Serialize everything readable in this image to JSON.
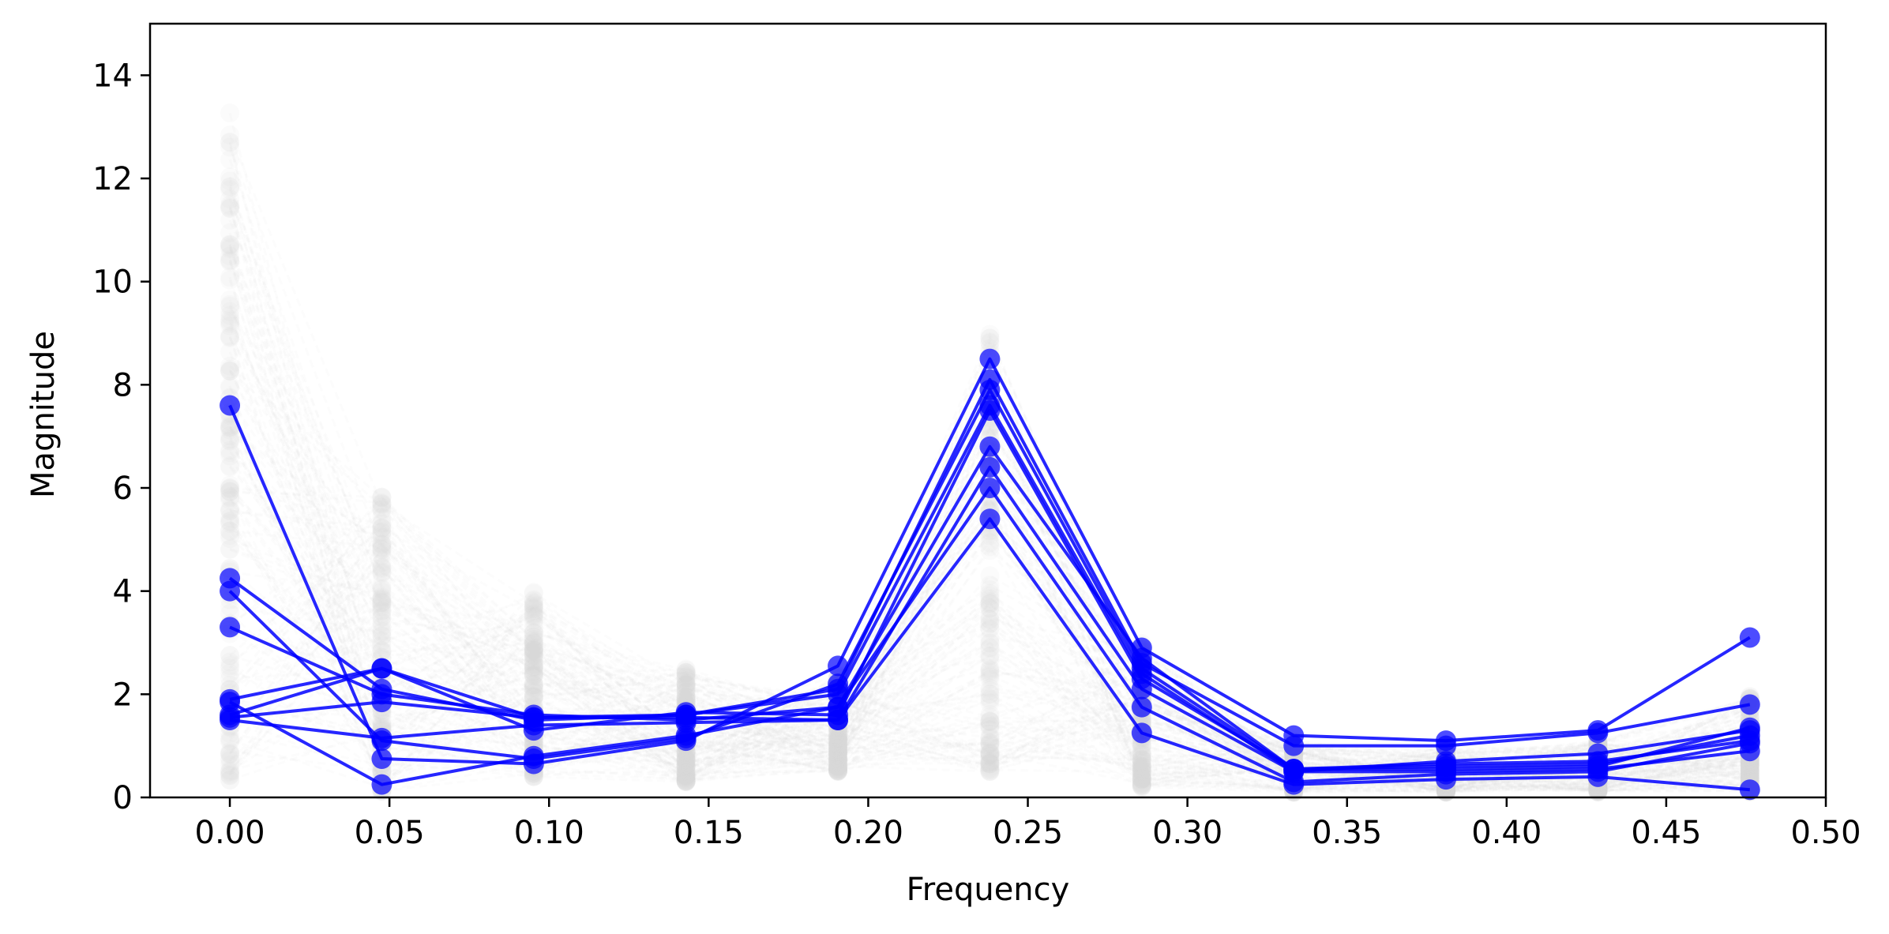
{
  "chart_data": {
    "type": "line",
    "xlabel": "Frequency",
    "ylabel": "Magnitude",
    "xlim": [
      -0.025,
      0.5
    ],
    "ylim": [
      0,
      15
    ],
    "xticks": [
      "0.00",
      "0.05",
      "0.10",
      "0.15",
      "0.20",
      "0.25",
      "0.30",
      "0.35",
      "0.40",
      "0.45",
      "0.50"
    ],
    "yticks": [
      "0",
      "2",
      "4",
      "6",
      "8",
      "10",
      "12",
      "14"
    ],
    "grid": false,
    "highlight_color": "#0000ff",
    "background_color": "#d3d3d3",
    "x": [
      0.0,
      0.0476,
      0.0952,
      0.1429,
      0.1905,
      0.2381,
      0.2857,
      0.3333,
      0.381,
      0.4286,
      0.4762
    ],
    "highlighted_series": [
      {
        "values": [
          7.6,
          0.75,
          0.65,
          1.1,
          2.55,
          8.5,
          2.9,
          1.2,
          1.1,
          1.3,
          3.1
        ]
      },
      {
        "values": [
          1.9,
          2.5,
          1.55,
          1.6,
          2.1,
          8.1,
          2.6,
          1.0,
          1.0,
          1.25,
          1.8
        ]
      },
      {
        "values": [
          4.0,
          1.1,
          0.75,
          1.15,
          2.2,
          7.9,
          2.5,
          0.55,
          0.6,
          0.65,
          1.2
        ]
      },
      {
        "values": [
          4.25,
          2.1,
          1.5,
          1.6,
          2.0,
          7.6,
          2.4,
          0.5,
          0.7,
          0.85,
          1.3
        ]
      },
      {
        "values": [
          1.6,
          2.5,
          1.3,
          1.65,
          1.6,
          7.5,
          2.3,
          0.55,
          0.55,
          0.6,
          1.35
        ]
      },
      {
        "values": [
          3.3,
          2.0,
          1.6,
          1.5,
          1.75,
          6.8,
          2.7,
          0.55,
          0.65,
          0.7,
          1.1
        ]
      },
      {
        "values": [
          1.55,
          1.85,
          1.55,
          1.55,
          1.5,
          6.4,
          2.1,
          0.5,
          0.5,
          0.55,
          0.9
        ]
      },
      {
        "values": [
          1.85,
          0.25,
          0.8,
          1.2,
          1.75,
          6.0,
          1.75,
          0.3,
          0.45,
          0.5,
          1.05
        ]
      },
      {
        "values": [
          1.5,
          1.15,
          1.4,
          1.45,
          1.5,
          5.4,
          1.25,
          0.25,
          0.35,
          0.4,
          0.15
        ]
      }
    ],
    "background_series_count": 150
  }
}
